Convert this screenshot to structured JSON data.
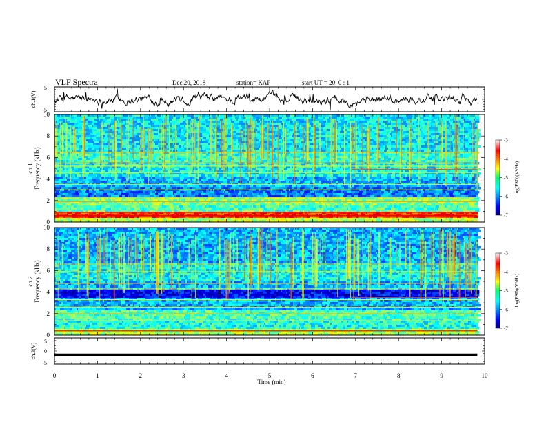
{
  "header": {
    "title": "VLF Spectra",
    "date": "Dec.20, 2018",
    "station": "station= KAP",
    "start": "start  UT =   20: 0  : 1"
  },
  "chart_data": [
    {
      "type": "line",
      "panel": "ch1-waveform",
      "ylabel": "ch.1(V)",
      "ylim": [
        -5,
        5
      ],
      "yticks": [
        "5",
        "-5"
      ],
      "x_range": [
        0,
        9.83
      ],
      "description_level": "noisy broadband signal around 0 V, amplitude about ±3 V"
    },
    {
      "type": "heatmap",
      "panel": "ch1-spectrogram",
      "ylabel": "ch.1",
      "ylabel2": "Frequency  (kHz)",
      "ylim": [
        0,
        10
      ],
      "yticks": [
        "0",
        "2",
        "4",
        "6",
        "8",
        "10"
      ],
      "x_range": [
        0,
        9.83
      ],
      "colorbar": {
        "label": "log(PSD)(V²/Hz)",
        "range": [
          -7,
          -3
        ],
        "ticks": [
          "-3",
          "-4",
          "-5",
          "-6",
          "-7"
        ]
      }
    },
    {
      "type": "heatmap",
      "panel": "ch2-spectrogram",
      "ylabel": "ch.2",
      "ylabel2": "Frequency  (kHz)",
      "ylim": [
        0,
        10
      ],
      "yticks": [
        "0",
        "2",
        "4",
        "6",
        "8",
        "10"
      ],
      "x_range": [
        0,
        9.83
      ],
      "colorbar": {
        "label": "log(PSD)(V²/Hz)",
        "range": [
          -7,
          -3
        ],
        "ticks": [
          "-3",
          "-4",
          "-5",
          "-6",
          "-7"
        ]
      }
    },
    {
      "type": "line",
      "panel": "ch3-waveform",
      "ylabel": "ch.3(V)",
      "ylim": [
        -5,
        5
      ],
      "yticks": [
        "5",
        "0",
        "-5"
      ],
      "x": [
        0,
        9.83
      ],
      "y": [
        -1.5,
        -1.5
      ]
    }
  ],
  "xaxis": {
    "label": "Time  (min)",
    "range": [
      0,
      10
    ],
    "ticks": [
      "0",
      "1",
      "2",
      "3",
      "4",
      "5",
      "6",
      "7",
      "8",
      "9",
      "10"
    ]
  }
}
